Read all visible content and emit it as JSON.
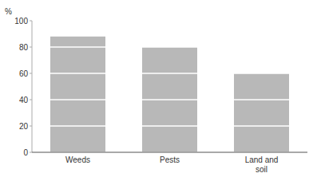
{
  "chart_data": {
    "type": "bar",
    "y_label": "%",
    "categories": [
      "Weeds",
      "Pests",
      "Land and\nsoil"
    ],
    "values": [
      88,
      80,
      60
    ],
    "color": "#b8b8b8",
    "ylim": [
      0,
      100
    ],
    "yticks": [
      0,
      20,
      40,
      60,
      80,
      100
    ],
    "grid": true
  }
}
